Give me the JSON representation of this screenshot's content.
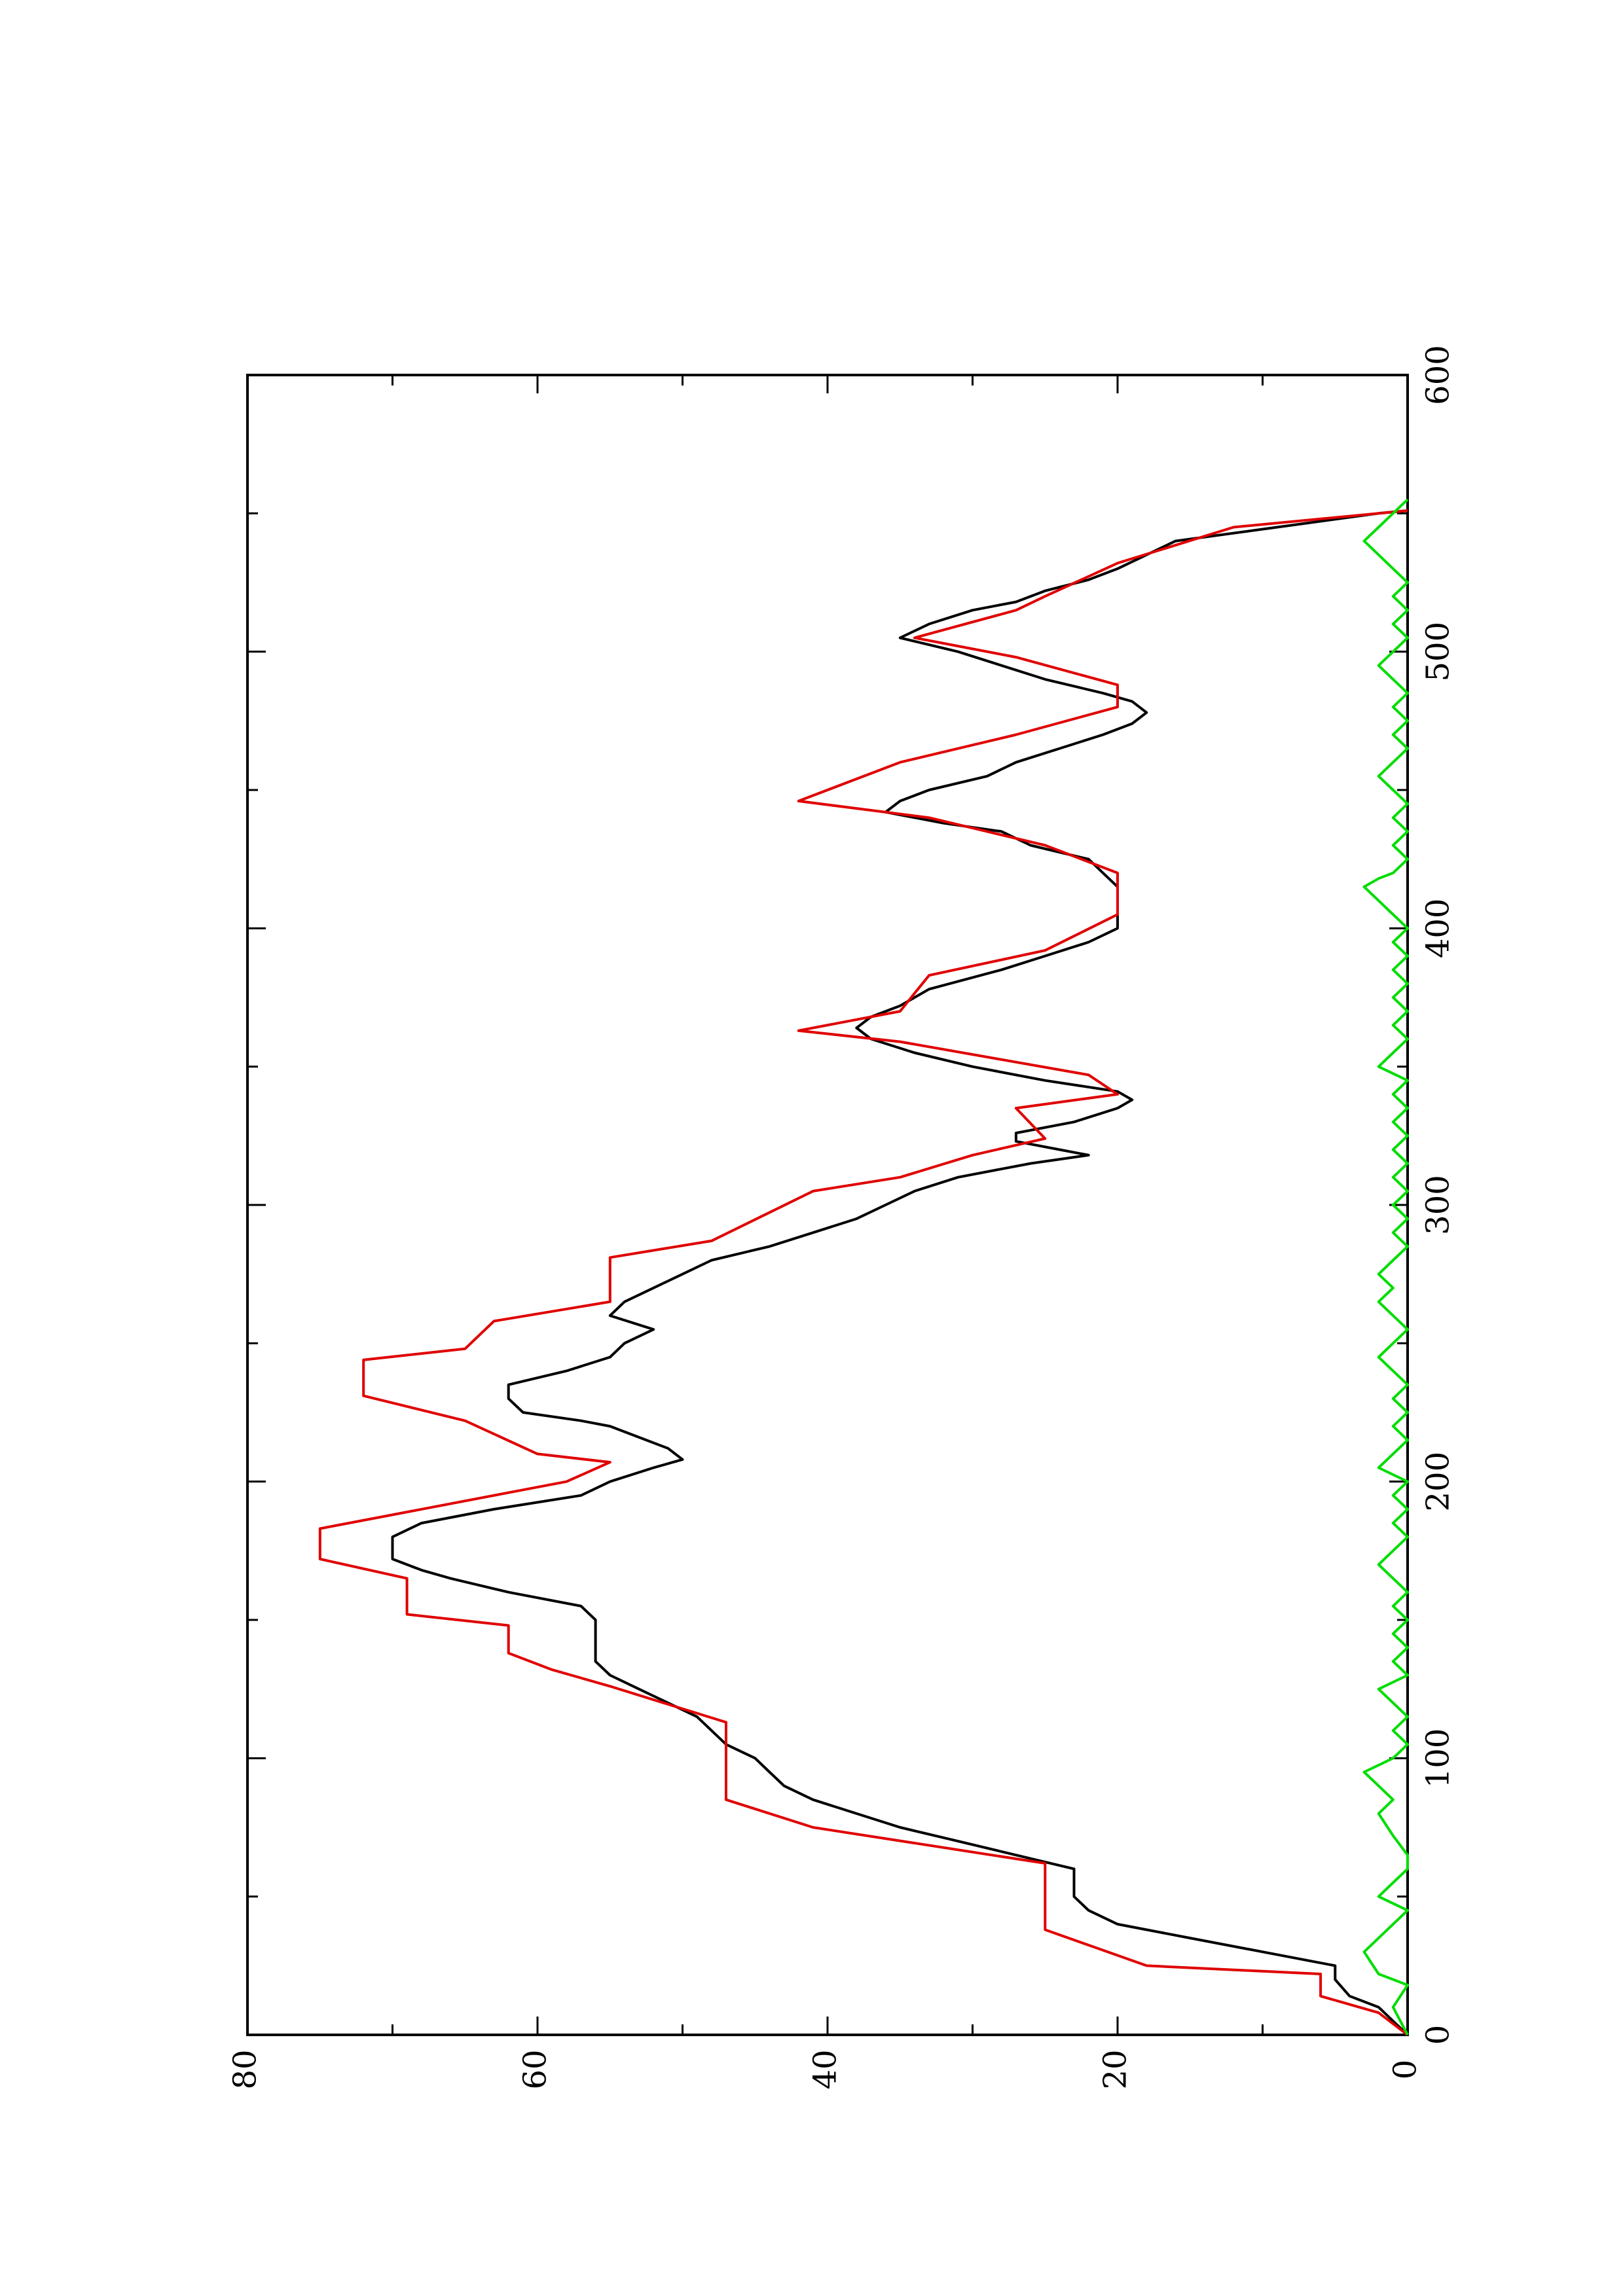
{
  "chart_data": {
    "type": "line",
    "orientation": "rotated-90-counterclockwise",
    "title": "",
    "xlabel": "",
    "ylabel": "",
    "xlim": [
      0,
      600
    ],
    "ylim": [
      0,
      80
    ],
    "x_ticks": [
      0,
      100,
      200,
      300,
      400,
      500,
      600
    ],
    "x_tick_labels": [
      "0",
      "100",
      "200",
      "300",
      "400",
      "500",
      "600"
    ],
    "x_minor_ticks": [
      50,
      150,
      250,
      350,
      450,
      550
    ],
    "y_ticks": [
      0,
      20,
      40,
      60,
      80
    ],
    "y_tick_labels": [
      "0",
      "20",
      "40",
      "60",
      "80"
    ],
    "y_minor_ticks": [
      10,
      30,
      50,
      70
    ],
    "grid": false,
    "legend": "none",
    "series": [
      {
        "color": "#000000",
        "style": "smooth",
        "points": [
          [
            0,
            0
          ],
          [
            5,
            1
          ],
          [
            10,
            2
          ],
          [
            14,
            4
          ],
          [
            20,
            5
          ],
          [
            25,
            5
          ],
          [
            30,
            10
          ],
          [
            35,
            15
          ],
          [
            40,
            20
          ],
          [
            45,
            22
          ],
          [
            50,
            23
          ],
          [
            55,
            23
          ],
          [
            60,
            23
          ],
          [
            65,
            27
          ],
          [
            70,
            31
          ],
          [
            75,
            35
          ],
          [
            80,
            38
          ],
          [
            85,
            41
          ],
          [
            90,
            43
          ],
          [
            95,
            44
          ],
          [
            100,
            45
          ],
          [
            105,
            47
          ],
          [
            110,
            48
          ],
          [
            115,
            49
          ],
          [
            120,
            51
          ],
          [
            125,
            53
          ],
          [
            130,
            55
          ],
          [
            135,
            56
          ],
          [
            140,
            56
          ],
          [
            145,
            56
          ],
          [
            150,
            56
          ],
          [
            155,
            57
          ],
          [
            160,
            62
          ],
          [
            165,
            66
          ],
          [
            168,
            68
          ],
          [
            172,
            70
          ],
          [
            176,
            70
          ],
          [
            180,
            70
          ],
          [
            185,
            68
          ],
          [
            190,
            63
          ],
          [
            195,
            57
          ],
          [
            200,
            55
          ],
          [
            205,
            52
          ],
          [
            208,
            50
          ],
          [
            212,
            51
          ],
          [
            216,
            53
          ],
          [
            220,
            55
          ],
          [
            222,
            57
          ],
          [
            225,
            61
          ],
          [
            230,
            62
          ],
          [
            235,
            62
          ],
          [
            240,
            58
          ],
          [
            245,
            55
          ],
          [
            250,
            54
          ],
          [
            255,
            52
          ],
          [
            260,
            55
          ],
          [
            265,
            54
          ],
          [
            270,
            52
          ],
          [
            275,
            50
          ],
          [
            280,
            48
          ],
          [
            285,
            44
          ],
          [
            290,
            41
          ],
          [
            295,
            38
          ],
          [
            300,
            36
          ],
          [
            305,
            34
          ],
          [
            310,
            31
          ],
          [
            315,
            26
          ],
          [
            318,
            22
          ],
          [
            320,
            24
          ],
          [
            323,
            27
          ],
          [
            326,
            27
          ],
          [
            330,
            23
          ],
          [
            335,
            20
          ],
          [
            338,
            19
          ],
          [
            341,
            20
          ],
          [
            345,
            25
          ],
          [
            350,
            30
          ],
          [
            355,
            34
          ],
          [
            360,
            37
          ],
          [
            364,
            38
          ],
          [
            368,
            37
          ],
          [
            372,
            35
          ],
          [
            378,
            33
          ],
          [
            385,
            28
          ],
          [
            390,
            25
          ],
          [
            395,
            22
          ],
          [
            400,
            20
          ],
          [
            405,
            20
          ],
          [
            410,
            20
          ],
          [
            415,
            20
          ],
          [
            420,
            21
          ],
          [
            425,
            22
          ],
          [
            430,
            26
          ],
          [
            435,
            28
          ],
          [
            438,
            32
          ],
          [
            442,
            36
          ],
          [
            446,
            35
          ],
          [
            450,
            33
          ],
          [
            455,
            29
          ],
          [
            460,
            27
          ],
          [
            465,
            24
          ],
          [
            470,
            21
          ],
          [
            474,
            19
          ],
          [
            478,
            18
          ],
          [
            482,
            19
          ],
          [
            485,
            21
          ],
          [
            490,
            25
          ],
          [
            495,
            28
          ],
          [
            500,
            31
          ],
          [
            505,
            35
          ],
          [
            510,
            33
          ],
          [
            515,
            30
          ],
          [
            518,
            27
          ],
          [
            522,
            25
          ],
          [
            526,
            22
          ],
          [
            530,
            20
          ],
          [
            535,
            18
          ],
          [
            540,
            16
          ],
          [
            545,
            9
          ],
          [
            550,
            2
          ],
          [
            551,
            0
          ]
        ]
      },
      {
        "color": "#e00000",
        "style": "step",
        "points": [
          [
            0,
            0
          ],
          [
            8,
            2
          ],
          [
            14,
            6
          ],
          [
            22,
            6
          ],
          [
            25,
            18
          ],
          [
            38,
            25
          ],
          [
            62,
            25
          ],
          [
            75,
            41
          ],
          [
            85,
            47
          ],
          [
            113,
            47
          ],
          [
            126,
            55
          ],
          [
            132,
            59
          ],
          [
            138,
            62
          ],
          [
            148,
            62
          ],
          [
            152,
            69
          ],
          [
            165,
            69
          ],
          [
            172,
            75
          ],
          [
            183,
            75
          ],
          [
            200,
            58
          ],
          [
            207,
            55
          ],
          [
            210,
            60
          ],
          [
            222,
            65
          ],
          [
            231,
            72
          ],
          [
            244,
            72
          ],
          [
            248,
            65
          ],
          [
            258,
            63
          ],
          [
            265,
            55
          ],
          [
            281,
            55
          ],
          [
            287,
            48
          ],
          [
            305,
            41
          ],
          [
            310,
            35
          ],
          [
            318,
            30
          ],
          [
            324,
            25
          ],
          [
            335,
            27
          ],
          [
            340,
            20
          ],
          [
            347,
            22
          ],
          [
            359,
            35
          ],
          [
            363,
            42
          ],
          [
            370,
            35
          ],
          [
            383,
            33
          ],
          [
            392,
            25
          ],
          [
            405,
            20
          ],
          [
            420,
            20
          ],
          [
            430,
            25
          ],
          [
            440,
            33
          ],
          [
            446,
            42
          ],
          [
            460,
            35
          ],
          [
            470,
            27
          ],
          [
            480,
            20
          ],
          [
            488,
            20
          ],
          [
            498,
            27
          ],
          [
            505,
            34
          ],
          [
            515,
            27
          ],
          [
            520,
            25
          ],
          [
            532,
            20
          ],
          [
            545,
            12
          ],
          [
            551,
            0
          ]
        ]
      },
      {
        "color": "#00dd00",
        "style": "noisy",
        "points": [
          [
            0,
            0
          ],
          [
            10,
            1
          ],
          [
            18,
            0
          ],
          [
            22,
            2
          ],
          [
            30,
            3
          ],
          [
            35,
            2
          ],
          [
            40,
            1
          ],
          [
            45,
            0
          ],
          [
            50,
            2
          ],
          [
            55,
            1
          ],
          [
            60,
            0
          ],
          [
            65,
            0
          ],
          [
            72,
            1
          ],
          [
            80,
            2
          ],
          [
            85,
            1
          ],
          [
            90,
            2
          ],
          [
            95,
            3
          ],
          [
            100,
            1
          ],
          [
            105,
            0
          ],
          [
            110,
            1
          ],
          [
            115,
            0
          ],
          [
            120,
            1
          ],
          [
            125,
            2
          ],
          [
            130,
            0
          ],
          [
            135,
            1
          ],
          [
            140,
            0
          ],
          [
            145,
            1
          ],
          [
            150,
            0
          ],
          [
            155,
            1
          ],
          [
            160,
            0
          ],
          [
            165,
            1
          ],
          [
            170,
            2
          ],
          [
            175,
            1
          ],
          [
            180,
            0
          ],
          [
            185,
            1
          ],
          [
            190,
            0
          ],
          [
            195,
            1
          ],
          [
            200,
            0
          ],
          [
            205,
            2
          ],
          [
            210,
            1
          ],
          [
            215,
            0
          ],
          [
            220,
            1
          ],
          [
            225,
            0
          ],
          [
            230,
            1
          ],
          [
            235,
            0
          ],
          [
            240,
            1
          ],
          [
            245,
            2
          ],
          [
            250,
            1
          ],
          [
            255,
            0
          ],
          [
            260,
            1
          ],
          [
            265,
            2
          ],
          [
            270,
            1
          ],
          [
            275,
            2
          ],
          [
            280,
            1
          ],
          [
            285,
            0
          ],
          [
            290,
            1
          ],
          [
            295,
            0
          ],
          [
            300,
            1
          ],
          [
            305,
            0
          ],
          [
            310,
            1
          ],
          [
            315,
            0
          ],
          [
            320,
            1
          ],
          [
            325,
            0
          ],
          [
            330,
            1
          ],
          [
            335,
            0
          ],
          [
            340,
            1
          ],
          [
            345,
            0
          ],
          [
            350,
            2
          ],
          [
            355,
            1
          ],
          [
            360,
            0
          ],
          [
            365,
            1
          ],
          [
            370,
            0
          ],
          [
            375,
            1
          ],
          [
            380,
            0
          ],
          [
            385,
            1
          ],
          [
            390,
            0
          ],
          [
            395,
            1
          ],
          [
            400,
            0
          ],
          [
            405,
            1
          ],
          [
            410,
            2
          ],
          [
            415,
            3
          ],
          [
            418,
            2
          ],
          [
            420,
            1
          ],
          [
            425,
            0
          ],
          [
            430,
            1
          ],
          [
            435,
            0
          ],
          [
            440,
            1
          ],
          [
            445,
            0
          ],
          [
            450,
            1
          ],
          [
            455,
            2
          ],
          [
            460,
            1
          ],
          [
            465,
            0
          ],
          [
            470,
            1
          ],
          [
            475,
            0
          ],
          [
            480,
            1
          ],
          [
            485,
            0
          ],
          [
            490,
            1
          ],
          [
            495,
            2
          ],
          [
            500,
            1
          ],
          [
            505,
            0
          ],
          [
            510,
            1
          ],
          [
            515,
            0
          ],
          [
            520,
            1
          ],
          [
            525,
            0
          ],
          [
            530,
            1
          ],
          [
            535,
            2
          ],
          [
            540,
            3
          ],
          [
            545,
            2
          ],
          [
            550,
            1
          ],
          [
            555,
            0
          ]
        ]
      }
    ]
  }
}
